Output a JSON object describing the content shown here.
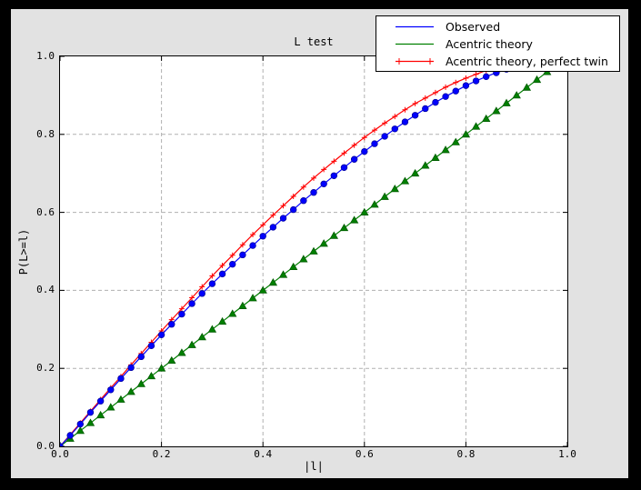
{
  "window": {
    "outer_background": "#000000",
    "figure_background": "#e2e2e2",
    "plot_background": "#ffffff"
  },
  "chart_data": {
    "type": "line",
    "title": "L test",
    "xlabel": "|l|",
    "ylabel": "P(L>=l)",
    "xlim": [
      0.0,
      1.0
    ],
    "ylim": [
      0.0,
      1.0
    ],
    "tick_positions": [
      0.0,
      0.2,
      0.4,
      0.6,
      0.8,
      1.0
    ],
    "xtick_labels": [
      "0.0",
      "0.2",
      "0.4",
      "0.6",
      "0.8",
      "1.0"
    ],
    "ytick_labels": [
      "0.0",
      "0.2",
      "0.4",
      "0.6",
      "0.8",
      "1.0"
    ],
    "grid": {
      "on": true,
      "positions": [
        0.2,
        0.4,
        0.6,
        0.8
      ],
      "style": "dashed",
      "color": "#b0b0b0"
    },
    "legend_position": "upper right",
    "x": [
      0.0,
      0.02,
      0.04,
      0.06,
      0.08,
      0.1,
      0.12,
      0.14,
      0.16,
      0.18,
      0.2,
      0.22,
      0.24,
      0.26,
      0.28,
      0.3,
      0.32,
      0.34,
      0.36,
      0.38,
      0.4,
      0.42,
      0.44,
      0.46,
      0.48,
      0.5,
      0.52,
      0.54,
      0.56,
      0.58,
      0.6,
      0.62,
      0.64,
      0.66,
      0.68,
      0.7,
      0.72,
      0.74,
      0.76,
      0.78,
      0.8,
      0.82,
      0.84,
      0.86,
      0.88,
      0.9,
      0.92,
      0.94,
      0.96
    ],
    "series": [
      {
        "name": "Observed",
        "color": "#0000ff",
        "marker": "circle",
        "marker_edge": "#0000a0",
        "legend_markers": false,
        "values": [
          0.0,
          0.028,
          0.057,
          0.087,
          0.116,
          0.145,
          0.174,
          0.202,
          0.23,
          0.258,
          0.286,
          0.313,
          0.339,
          0.366,
          0.392,
          0.417,
          0.442,
          0.467,
          0.491,
          0.515,
          0.539,
          0.562,
          0.585,
          0.607,
          0.63,
          0.651,
          0.673,
          0.694,
          0.715,
          0.736,
          0.756,
          0.776,
          0.795,
          0.814,
          0.832,
          0.849,
          0.866,
          0.882,
          0.897,
          0.911,
          0.925,
          0.937,
          0.948,
          0.958,
          0.967,
          0.975,
          0.982,
          0.987,
          0.991
        ]
      },
      {
        "name": "Acentric theory",
        "color": "#008000",
        "marker": "triangle-up",
        "marker_edge": "#005a00",
        "legend_markers": false,
        "values": [
          0.0,
          0.02,
          0.04,
          0.06,
          0.08,
          0.1,
          0.12,
          0.14,
          0.16,
          0.18,
          0.2,
          0.22,
          0.24,
          0.26,
          0.28,
          0.3,
          0.32,
          0.34,
          0.36,
          0.38,
          0.4,
          0.42,
          0.44,
          0.46,
          0.48,
          0.5,
          0.52,
          0.54,
          0.56,
          0.58,
          0.6,
          0.62,
          0.64,
          0.66,
          0.68,
          0.7,
          0.72,
          0.74,
          0.76,
          0.78,
          0.8,
          0.82,
          0.84,
          0.86,
          0.88,
          0.9,
          0.92,
          0.94,
          0.96
        ]
      },
      {
        "name": "Acentric theory, perfect twin",
        "color": "#ff0000",
        "marker": "plus",
        "marker_edge": "#ff0000",
        "legend_markers": true,
        "values": [
          0.0,
          0.03,
          0.06,
          0.09,
          0.12,
          0.15,
          0.179,
          0.209,
          0.238,
          0.267,
          0.296,
          0.325,
          0.353,
          0.381,
          0.409,
          0.437,
          0.464,
          0.49,
          0.517,
          0.543,
          0.568,
          0.593,
          0.617,
          0.641,
          0.665,
          0.688,
          0.71,
          0.731,
          0.752,
          0.772,
          0.792,
          0.811,
          0.829,
          0.846,
          0.863,
          0.879,
          0.893,
          0.907,
          0.921,
          0.933,
          0.944,
          0.954,
          0.964,
          0.972,
          0.979,
          0.986,
          0.991,
          0.995,
          0.998
        ]
      }
    ]
  }
}
